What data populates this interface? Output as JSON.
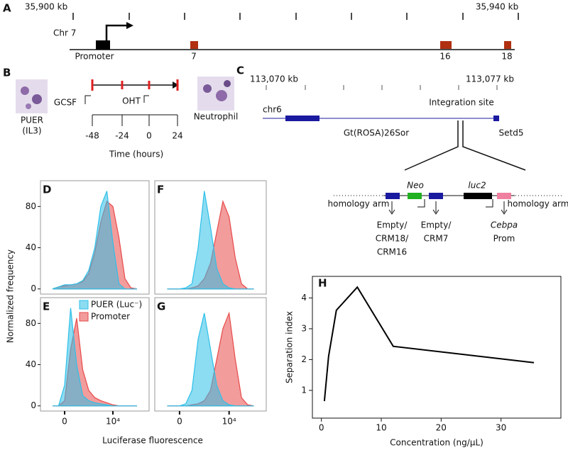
{
  "panels": {
    "A": {
      "label": "A",
      "left_coord": "35,900 kb",
      "right_coord": "35,940 kb",
      "chromosome": "Chr 7",
      "features": [
        "Promoter",
        "7",
        "16",
        "18"
      ]
    },
    "B": {
      "label": "B",
      "start_cell": [
        "PUER",
        "(IL3)"
      ],
      "end_cell": "Neutrophil",
      "treatments": [
        "GCSF",
        "OHT"
      ],
      "times": [
        "-48",
        "-24",
        "0",
        "24"
      ],
      "time_label": "Time (hours)"
    },
    "C": {
      "label": "C",
      "left_coord": "113,070 kb",
      "right_coord": "113,077 kb",
      "site": "Integration site",
      "chromosome": "chr6",
      "genes": [
        "Gt(ROSA)26Sor",
        "Setd5"
      ],
      "elements": [
        "Neo",
        "luc2"
      ],
      "arm": "homology arm",
      "slots": [
        [
          "Empty/",
          "CRM18/",
          "CRM16"
        ],
        [
          "Empty/",
          "CRM7"
        ],
        [
          "Cebpa",
          "Prom"
        ]
      ]
    }
  },
  "shared": {
    "y_label": "Normalized frequency",
    "x_label": "Luciferase fluorescence"
  },
  "chart_data": [
    {
      "type": "area",
      "panel": "D",
      "x": [
        -1,
        -0.5,
        0,
        0.5,
        1,
        1.5,
        2,
        2.5,
        3,
        3.5,
        4,
        4.5,
        5,
        5.5,
        6
      ],
      "xlim": [
        -2,
        7
      ],
      "ylim": [
        -5,
        105
      ],
      "yticks": [
        0,
        40,
        80
      ],
      "series": [
        {
          "color": "#e84a4a",
          "values": [
            0,
            2,
            3,
            4,
            5,
            7,
            15,
            35,
            65,
            85,
            80,
            50,
            10,
            1,
            0
          ]
        },
        {
          "color": "#2ec0e8",
          "values": [
            0,
            2,
            4,
            4,
            5,
            8,
            18,
            40,
            80,
            95,
            45,
            5,
            0,
            0,
            0
          ]
        }
      ]
    },
    {
      "type": "area",
      "panel": "E",
      "x": [
        -1,
        -0.5,
        0,
        0.5,
        1,
        1.5,
        2,
        2.5,
        3,
        3.5,
        4,
        4.5,
        5,
        5.5,
        6
      ],
      "xlim": [
        -2,
        7
      ],
      "ylim": [
        -5,
        105
      ],
      "yticks": [
        0,
        40,
        80
      ],
      "xticks": [
        0,
        {
          "value": 4,
          "label": "10⁴"
        }
      ],
      "series": [
        {
          "name": "Promoter",
          "color": "#e84a4a",
          "values": [
            0,
            0,
            5,
            55,
            85,
            35,
            15,
            8,
            5,
            3,
            1,
            0,
            0,
            0,
            0
          ]
        },
        {
          "name": "PUER (Luc⁻)",
          "color": "#2ec0e8",
          "values": [
            0,
            0,
            20,
            95,
            40,
            10,
            5,
            3,
            2,
            1,
            0,
            0,
            0,
            0,
            0
          ]
        }
      ]
    },
    {
      "type": "area",
      "panel": "F",
      "x": [
        -1,
        -0.5,
        0,
        0.5,
        1,
        1.5,
        2,
        2.5,
        3,
        3.5,
        4,
        4.5,
        5,
        5.5,
        6
      ],
      "xlim": [
        -2,
        7
      ],
      "ylim": [
        -5,
        105
      ],
      "series": [
        {
          "color": "#e84a4a",
          "values": [
            0,
            0,
            0,
            0,
            1,
            3,
            10,
            25,
            55,
            85,
            70,
            30,
            5,
            0,
            0
          ]
        },
        {
          "color": "#2ec0e8",
          "values": [
            0,
            0,
            0,
            1,
            5,
            40,
            95,
            60,
            20,
            5,
            1,
            0,
            0,
            0,
            0
          ]
        }
      ]
    },
    {
      "type": "area",
      "panel": "G",
      "x": [
        -1,
        -0.5,
        0,
        0.5,
        1,
        1.5,
        2,
        2.5,
        3,
        3.5,
        4,
        4.5,
        5,
        5.5,
        6
      ],
      "xlim": [
        -2,
        7
      ],
      "ylim": [
        -5,
        105
      ],
      "xticks": [
        0,
        {
          "value": 4,
          "label": "10⁴"
        }
      ],
      "series": [
        {
          "color": "#e84a4a",
          "values": [
            0,
            0,
            0,
            0,
            1,
            2,
            5,
            15,
            45,
            75,
            90,
            45,
            8,
            1,
            0
          ]
        },
        {
          "color": "#2ec0e8",
          "values": [
            0,
            0,
            0,
            2,
            15,
            65,
            90,
            55,
            20,
            5,
            1,
            0,
            0,
            0,
            0
          ]
        }
      ]
    },
    {
      "type": "line",
      "panel": "H",
      "x_label": "Concentration (ng/μL)",
      "y_label": "Separation index",
      "x": [
        0.5,
        1.2,
        2.5,
        6,
        12,
        35.5
      ],
      "values": [
        0.65,
        2.1,
        3.6,
        4.35,
        2.43,
        1.9
      ],
      "color": "#000000",
      "xlim": [
        -1.5,
        40
      ],
      "ylim": [
        0.1,
        4.7
      ],
      "xticks": [
        0,
        10,
        20,
        30
      ],
      "yticks": [
        1,
        2,
        3,
        4
      ]
    }
  ]
}
